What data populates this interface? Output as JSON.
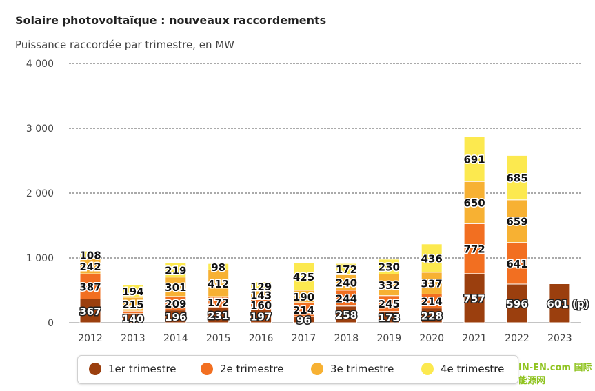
{
  "chart_data": {
    "type": "bar",
    "stacked": true,
    "title": "Solaire photovoltaïque : nouveaux raccordements",
    "subtitle": "Puissance raccordée par trimestre, en MW",
    "xlabel": "",
    "ylabel": "",
    "ylim": [
      0,
      4000
    ],
    "yticks": [
      "0",
      "1 000",
      "2 000",
      "3 000",
      "4 000"
    ],
    "ytick_values": [
      0,
      1000,
      2000,
      3000,
      4000
    ],
    "grid": true,
    "legend_position": "bottom",
    "categories": [
      "2012",
      "2013",
      "2014",
      "2015",
      "2016",
      "2017",
      "2018",
      "2019",
      "2020",
      "2021",
      "2022",
      "2023"
    ],
    "series": [
      {
        "name": "1er trimestre",
        "color": "#9b3f0e",
        "values": [
          367,
          140,
          196,
          231,
          197,
          96,
          258,
          173,
          228,
          757,
          596,
          601
        ]
      },
      {
        "name": "2e trimestre",
        "color": "#f26f21",
        "values": [
          387,
          40,
          209,
          172,
          160,
          214,
          244,
          245,
          214,
          772,
          641,
          null
        ]
      },
      {
        "name": "3e trimestre",
        "color": "#f7b133",
        "values": [
          242,
          215,
          301,
          412,
          143,
          190,
          240,
          332,
          337,
          650,
          659,
          null
        ]
      },
      {
        "name": "4e trimestre",
        "color": "#fce94f",
        "values": [
          108,
          194,
          219,
          98,
          129,
          425,
          172,
          230,
          436,
          691,
          685,
          null
        ]
      }
    ],
    "labels": [
      [
        "367",
        "140",
        "196",
        "231",
        "197",
        "96",
        "258",
        "173",
        "228",
        "757",
        "596",
        "601 (p)"
      ],
      [
        "387",
        "",
        "209",
        "172",
        "160",
        "214",
        "244",
        "245",
        "214",
        "772",
        "641",
        ""
      ],
      [
        "242",
        "215",
        "301",
        "412",
        "143",
        "190",
        "240",
        "332",
        "337",
        "650",
        "659",
        ""
      ],
      [
        "108",
        "194",
        "219",
        "98",
        "129",
        "425",
        "172",
        "230",
        "436",
        "691",
        "685",
        ""
      ]
    ]
  },
  "legend": {
    "items": [
      {
        "label": "1er trimestre",
        "color": "#9b3f0e"
      },
      {
        "label": "2e trimestre",
        "color": "#f26f21"
      },
      {
        "label": "3e trimestre",
        "color": "#f7b133"
      },
      {
        "label": "4e trimestre",
        "color": "#fce94f"
      }
    ]
  },
  "watermark": "IN-EN.com 国际能源网"
}
